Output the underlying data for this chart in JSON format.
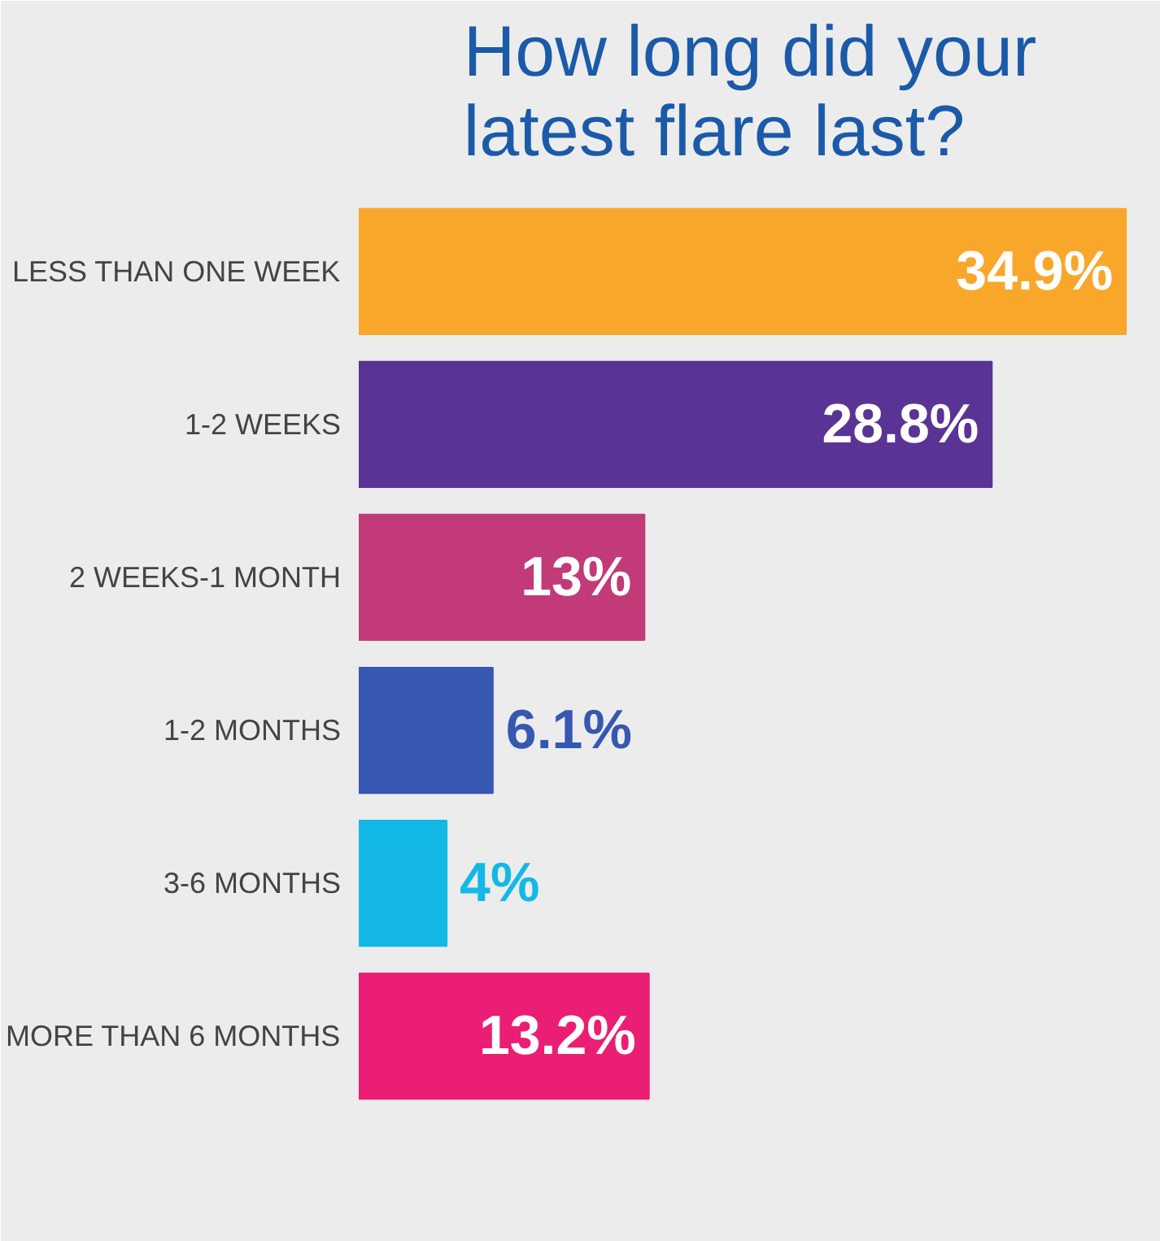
{
  "chart_data": {
    "type": "bar",
    "orientation": "horizontal",
    "title": "How long did your\nlatest flare last?",
    "categories": [
      "LESS THAN ONE WEEK",
      "1-2 WEEKS",
      "2 WEEKS-1 MONTH",
      "1-2 MONTHS",
      "3-6 MONTHS",
      "MORE THAN 6 MONTHS"
    ],
    "values": [
      34.9,
      28.8,
      13,
      6.1,
      4,
      13.2
    ],
    "value_labels": [
      "34.9%",
      "28.8%",
      "13%",
      "6.1%",
      "4%",
      "13.2%"
    ],
    "colors": [
      "#f9a72b",
      "#5a3494",
      "#c23a78",
      "#3657b2",
      "#14b8e6",
      "#ea1e75"
    ],
    "grid": false
  }
}
